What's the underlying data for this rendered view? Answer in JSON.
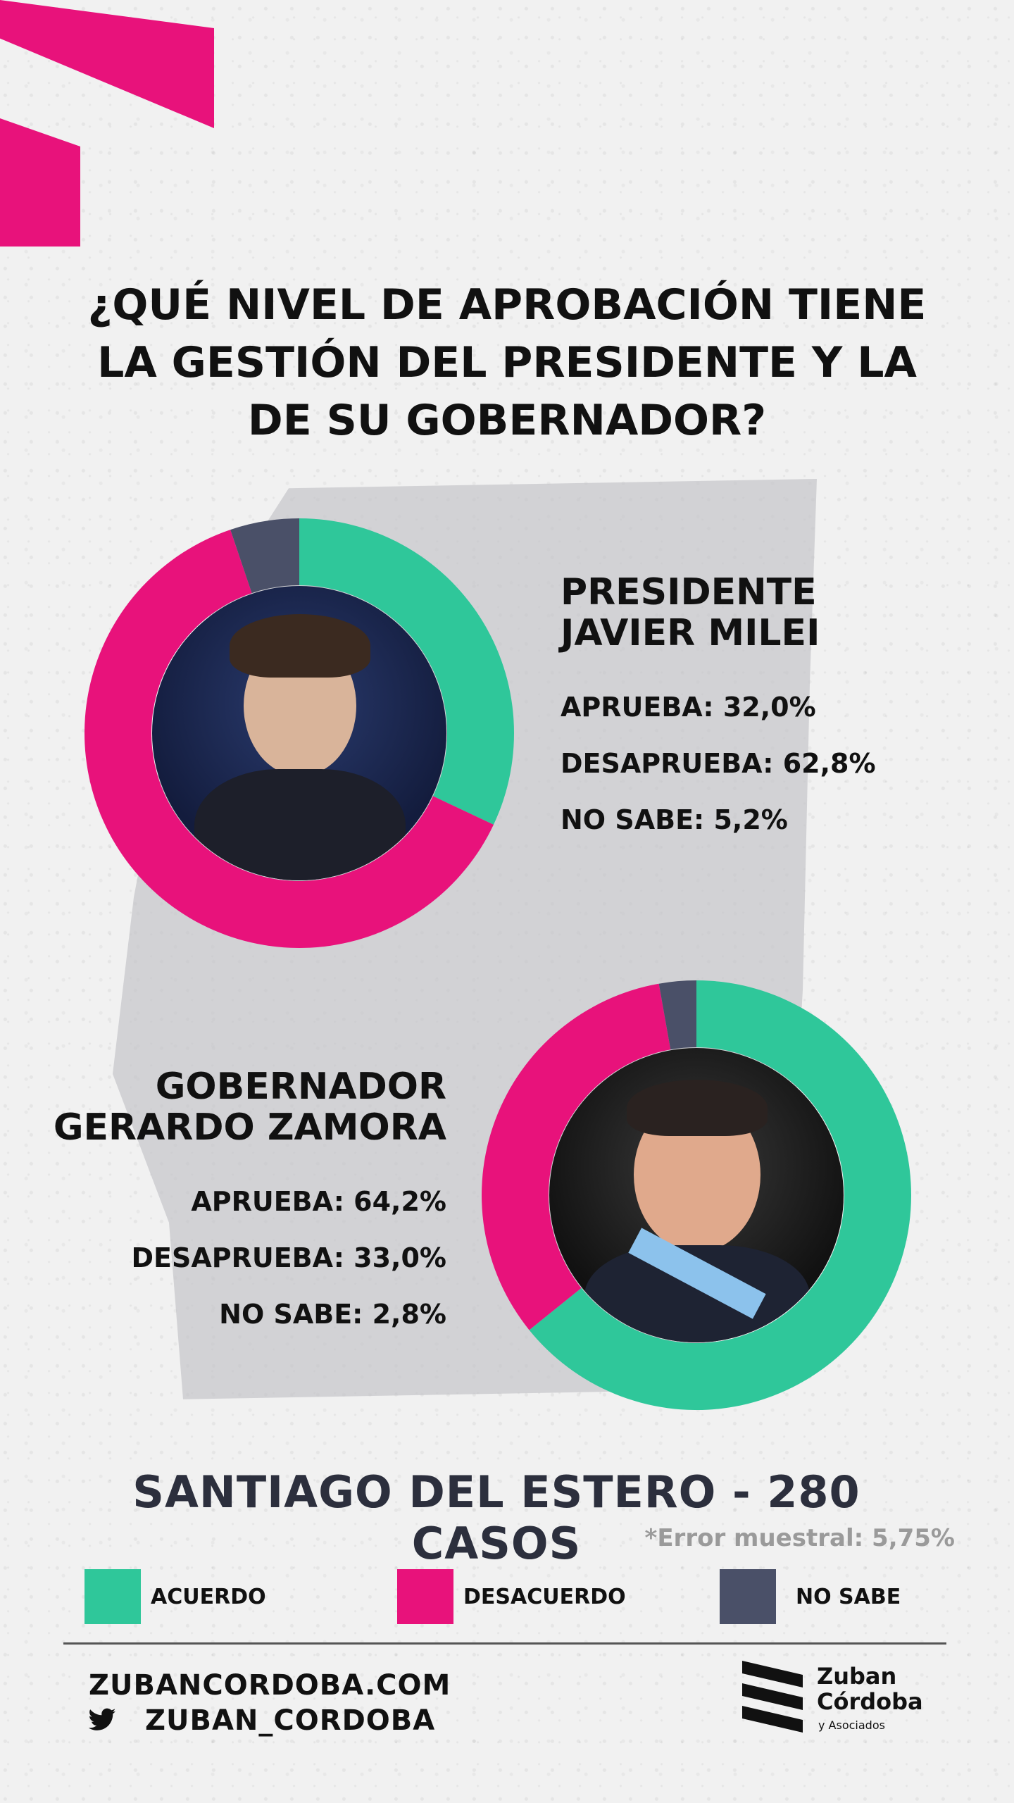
{
  "title": "¿QUÉ NIVEL DE APROBACIÓN TIENE\nLA GESTIÓN DEL PRESIDENTE Y LA\nDE SU GOBERNADOR?",
  "colors": {
    "acuerdo": "#2fc79a",
    "desacuerdo": "#e8127b",
    "no_sabe": "#4a5068",
    "accent": "#e8127b"
  },
  "chart_data": [
    {
      "type": "pie",
      "title": "PRESIDENTE\nJAVIER MILEI",
      "categories": [
        "APRUEBA",
        "DESAPRUEBA",
        "NO SABE"
      ],
      "values": [
        32.0,
        62.8,
        5.2
      ],
      "labels": [
        "APRUEBA: 32,0%",
        "DESAPRUEBA: 62,8%",
        "NO SABE: 5,2%"
      ]
    },
    {
      "type": "pie",
      "title": "GOBERNADOR\nGERARDO ZAMORA",
      "categories": [
        "APRUEBA",
        "DESAPRUEBA",
        "NO SABE"
      ],
      "values": [
        64.2,
        33.0,
        2.8
      ],
      "labels": [
        "APRUEBA: 64,2%",
        "DESAPRUEBA: 33,0%",
        "NO SABE: 2,8%"
      ]
    }
  ],
  "sample": "SANTIAGO DEL ESTERO - 280 CASOS",
  "error": "*Error muestral: 5,75%",
  "legend": [
    {
      "label": "ACUERDO",
      "color": "#2fc79a"
    },
    {
      "label": "DESACUERDO",
      "color": "#e8127b"
    },
    {
      "label": "NO SABE",
      "color": "#4a5068"
    }
  ],
  "footer": {
    "website": "ZUBANCORDOBA.COM",
    "twitter": "ZUBAN_CORDOBA",
    "twitter_icon": "twitter-icon"
  },
  "logo": {
    "name": "Zuban\nCórdoba",
    "sub": "y Asociados"
  }
}
